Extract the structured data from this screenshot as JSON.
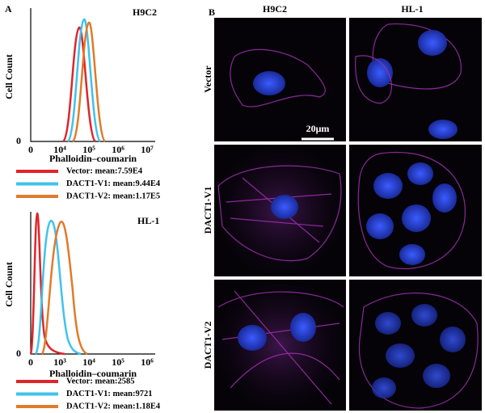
{
  "panel_a": {
    "label": "A",
    "y_label": "Cell Count",
    "plots": [
      {
        "title": "H9C2",
        "y_tick": "0",
        "x_ticks": [
          "0",
          "10⁴",
          "10⁵",
          "10⁶",
          "10⁷"
        ],
        "x_label": "Phalloidin–coumarin",
        "legend": [
          "Vector: mean:7.59E4",
          "DACT1-V1: mean:9.44E4",
          "DACT1-V2: mean:1.17E5"
        ]
      },
      {
        "title": "HL-1",
        "y_tick": "0",
        "x_ticks": [
          "0",
          "10³",
          "10⁴",
          "10⁵",
          "10⁶"
        ],
        "x_label": "Phalloidin–coumarin",
        "legend": [
          "Vector: mean:2585",
          "DACT1-V1: mean:9721",
          "DACT1-V2: mean:1.18E4"
        ]
      }
    ]
  },
  "panel_b": {
    "label": "B",
    "columns": [
      "H9C2",
      "HL-1"
    ],
    "rows": [
      "Vector",
      "DACT1-V1",
      "DACT1-V2"
    ],
    "scale_bar": "20μm"
  }
}
